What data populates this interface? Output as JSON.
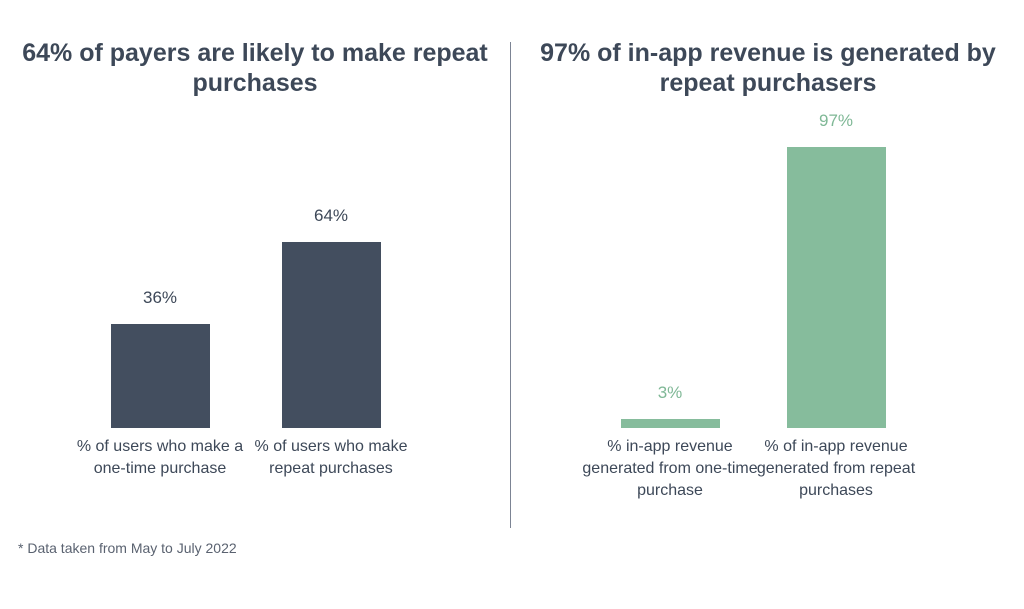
{
  "colors": {
    "left_bar": "#434e5f",
    "right_bar": "#86bc9c",
    "text_dark": "#3d4858",
    "text_green": "#7fb896"
  },
  "chart_data": [
    {
      "type": "bar",
      "title": "64% of payers are likely to make repeat purchases",
      "categories": [
        "% of users who make a one-time purchase",
        "% of users who make repeat purchases"
      ],
      "values": [
        36,
        64
      ],
      "value_labels": [
        "36%",
        "64%"
      ],
      "ylim": [
        0,
        100
      ],
      "grid": false,
      "legend": "none"
    },
    {
      "type": "bar",
      "title": "97% of in-app revenue is generated by repeat purchasers",
      "categories": [
        "% in-app revenue generated from one-time purchase",
        "% of in-app revenue generated from repeat purchases"
      ],
      "values": [
        3,
        97
      ],
      "value_labels": [
        "3%",
        "97%"
      ],
      "ylim": [
        0,
        100
      ],
      "grid": false,
      "legend": "none"
    }
  ],
  "footnote": "* Data taken from May to July 2022"
}
